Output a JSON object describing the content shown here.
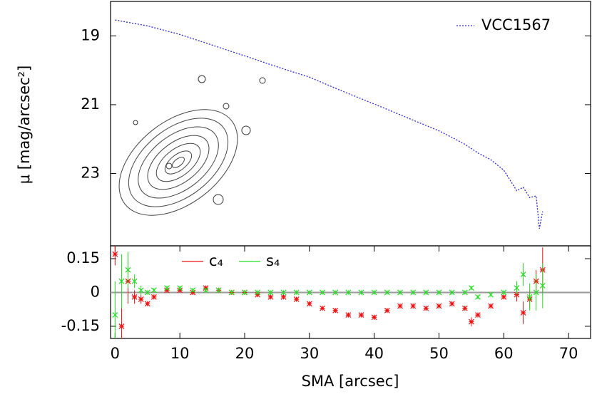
{
  "chart_data": [
    {
      "type": "line",
      "ylabel": "μ [mag/arcsec²]",
      "xlim": [
        -0.7,
        73.4
      ],
      "ylim": [
        25.1,
        18.0
      ],
      "yticks": [
        19,
        21,
        23
      ],
      "legend": "upper right",
      "series": [
        {
          "name": "VCC1567",
          "color": "#2a2acc",
          "x": [
            0,
            5,
            10,
            15,
            20,
            25,
            30,
            35,
            40,
            45,
            50,
            52,
            54,
            56,
            58,
            60,
            61,
            62,
            63,
            64,
            65,
            65.5,
            66
          ],
          "values": [
            18.54,
            18.71,
            18.96,
            19.27,
            19.58,
            19.9,
            20.2,
            20.6,
            20.98,
            21.37,
            21.76,
            21.95,
            22.15,
            22.4,
            22.6,
            22.9,
            23.2,
            23.5,
            23.4,
            23.7,
            23.65,
            24.6,
            24.1
          ]
        }
      ]
    },
    {
      "type": "errorbar",
      "xlabel": "SMA [arcsec]",
      "xlim": [
        -0.7,
        73.4
      ],
      "xticks": [
        0,
        10,
        20,
        30,
        40,
        50,
        60,
        70
      ],
      "ylim": [
        -0.204,
        0.207
      ],
      "yticks": [
        0.15,
        0,
        -0.15
      ],
      "legend": "upper left",
      "x": [
        0,
        1,
        2,
        3,
        4,
        5,
        6,
        8,
        10,
        12,
        14,
        16,
        18,
        20,
        22,
        24,
        26,
        28,
        30,
        32,
        34,
        36,
        38,
        40,
        42,
        44,
        46,
        48,
        50,
        52,
        54,
        55,
        56,
        58,
        60,
        62,
        63,
        64,
        65,
        66
      ],
      "series": [
        {
          "name": "c₄",
          "color": "#ee1111",
          "marker": "+",
          "values": [
            0.17,
            -0.15,
            0.05,
            -0.02,
            -0.03,
            -0.05,
            -0.02,
            0.01,
            0.01,
            0.0,
            0.02,
            0.01,
            0.0,
            0.0,
            -0.01,
            -0.02,
            -0.02,
            -0.03,
            -0.05,
            -0.07,
            -0.08,
            -0.1,
            -0.1,
            -0.11,
            -0.08,
            -0.06,
            -0.06,
            -0.07,
            -0.06,
            -0.05,
            -0.07,
            -0.13,
            -0.1,
            -0.06,
            -0.02,
            -0.01,
            -0.09,
            -0.03,
            0.05,
            0.1
          ],
          "errors": [
            0.05,
            0.08,
            0.1,
            0.03,
            0.02,
            0.01,
            0.01,
            0.01,
            0.01,
            0.01,
            0.01,
            0.01,
            0.01,
            0.01,
            0.01,
            0.01,
            0.01,
            0.01,
            0.01,
            0.01,
            0.01,
            0.01,
            0.01,
            0.01,
            0.01,
            0.01,
            0.01,
            0.01,
            0.01,
            0.01,
            0.01,
            0.02,
            0.01,
            0.01,
            0.01,
            0.03,
            0.05,
            0.04,
            0.05,
            0.1
          ]
        },
        {
          "name": "s₄",
          "color": "#22dd22",
          "marker": "x",
          "values": [
            -0.1,
            0.05,
            0.1,
            0.05,
            0.01,
            0.0,
            0.01,
            0.02,
            0.02,
            0.01,
            0.01,
            0.01,
            0.0,
            0.0,
            0.0,
            0.0,
            0.0,
            0.0,
            0.0,
            0.0,
            0.0,
            0.0,
            0.0,
            0.0,
            0.0,
            0.0,
            0.0,
            0.0,
            0.0,
            0.0,
            0.0,
            0.02,
            -0.02,
            -0.01,
            0.0,
            0.02,
            0.08,
            -0.02,
            0.0,
            0.03
          ],
          "errors": [
            0.15,
            0.12,
            0.08,
            0.03,
            0.02,
            0.01,
            0.01,
            0.01,
            0.01,
            0.01,
            0.01,
            0.01,
            0.01,
            0.01,
            0.01,
            0.01,
            0.01,
            0.01,
            0.01,
            0.01,
            0.01,
            0.01,
            0.01,
            0.01,
            0.01,
            0.01,
            0.01,
            0.01,
            0.01,
            0.01,
            0.01,
            0.01,
            0.01,
            0.01,
            0.01,
            0.03,
            0.05,
            0.06,
            0.08,
            0.1
          ]
        }
      ]
    }
  ]
}
